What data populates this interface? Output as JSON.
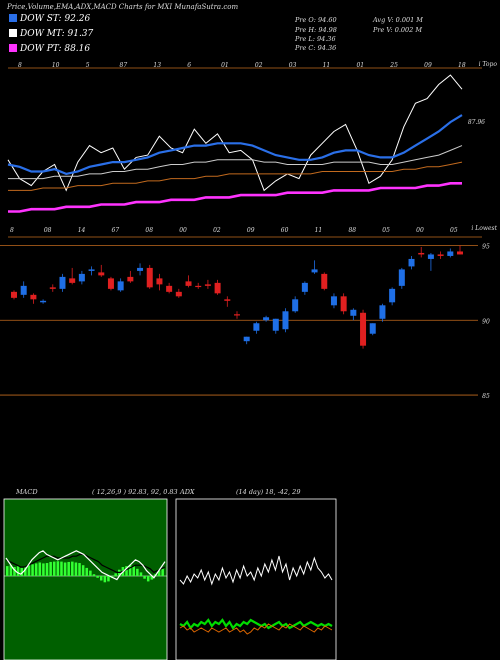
{
  "header": {
    "title": "Price,Volume,EMA,ADX,MACD Charts for MXI MunafaSutra.com",
    "legend": [
      {
        "label": "DOW ST: 92.26",
        "color": "#2a6fe8"
      },
      {
        "label": "DOW MT: 91.37",
        "color": "#ffffff"
      },
      {
        "label": "DOW PT: 88.16",
        "color": "#ff33ff"
      }
    ],
    "ohlc_left": [
      "Pre O: 94.60",
      "Pre H: 94.98",
      "Pre L: 94.36",
      "Pre C: 94.36"
    ],
    "ohlc_right": [
      "Avg V: 0.001 M",
      "Pre V: 0.002 M"
    ]
  },
  "chart_data": [
    {
      "type": "line",
      "panel": "ema",
      "corner_label": "i Topo",
      "last_value_label": "87.96",
      "top_axis_ticks": [
        "8",
        "10",
        "5",
        "87",
        "13",
        "6",
        "01",
        "02",
        "03",
        "11",
        "01",
        "25",
        "09",
        "18"
      ],
      "bottom_axis_ticks": [
        "8",
        "08",
        "14",
        "67",
        "08",
        "00",
        "02",
        "09",
        "60",
        "11",
        "88",
        "05",
        "00",
        "05"
      ],
      "series": [
        {
          "name": "price",
          "color": "#ffffff",
          "values": [
            91.4,
            90.6,
            90.3,
            90.9,
            91.2,
            90.1,
            91.3,
            92.0,
            91.7,
            91.9,
            91.0,
            91.5,
            91.6,
            92.4,
            91.9,
            91.7,
            92.7,
            92.1,
            92.5,
            91.7,
            91.8,
            91.4,
            90.1,
            90.5,
            90.8,
            90.6,
            91.6,
            92.1,
            92.6,
            92.9,
            91.8,
            90.4,
            90.7,
            91.4,
            92.8,
            93.8,
            94.0,
            94.6,
            95.0,
            94.4
          ]
        },
        {
          "name": "ema_short",
          "color": "#2a6fe8",
          "values": [
            91.2,
            91.1,
            90.9,
            90.9,
            91.0,
            90.8,
            90.9,
            91.1,
            91.2,
            91.3,
            91.3,
            91.4,
            91.5,
            91.7,
            91.8,
            91.9,
            92.0,
            92.0,
            92.1,
            92.1,
            92.1,
            92.0,
            91.8,
            91.6,
            91.5,
            91.4,
            91.4,
            91.5,
            91.7,
            91.8,
            91.8,
            91.6,
            91.5,
            91.5,
            91.7,
            92.0,
            92.3,
            92.6,
            93.0,
            93.3
          ]
        },
        {
          "name": "ema_mid",
          "color": "#cccccc",
          "values": [
            90.6,
            90.6,
            90.6,
            90.6,
            90.7,
            90.7,
            90.7,
            90.8,
            90.8,
            90.9,
            90.9,
            91.0,
            91.0,
            91.1,
            91.2,
            91.2,
            91.3,
            91.3,
            91.4,
            91.4,
            91.4,
            91.4,
            91.3,
            91.3,
            91.2,
            91.2,
            91.2,
            91.2,
            91.3,
            91.3,
            91.3,
            91.3,
            91.2,
            91.2,
            91.3,
            91.4,
            91.5,
            91.6,
            91.8,
            92.0
          ]
        },
        {
          "name": "ema_long",
          "color": "#c26a1e",
          "values": [
            90.1,
            90.1,
            90.1,
            90.2,
            90.2,
            90.2,
            90.3,
            90.3,
            90.3,
            90.4,
            90.4,
            90.4,
            90.5,
            90.5,
            90.6,
            90.6,
            90.6,
            90.7,
            90.7,
            90.8,
            90.8,
            90.8,
            90.8,
            90.8,
            90.8,
            90.8,
            90.8,
            90.9,
            90.9,
            90.9,
            90.9,
            90.9,
            90.9,
            90.9,
            91.0,
            91.0,
            91.1,
            91.1,
            91.2,
            91.3
          ]
        },
        {
          "name": "ema_pt",
          "color": "#ff33ff",
          "values": [
            89.2,
            89.2,
            89.3,
            89.3,
            89.3,
            89.4,
            89.4,
            89.4,
            89.5,
            89.5,
            89.5,
            89.6,
            89.6,
            89.6,
            89.7,
            89.7,
            89.7,
            89.8,
            89.8,
            89.8,
            89.9,
            89.9,
            89.9,
            89.9,
            90.0,
            90.0,
            90.0,
            90.0,
            90.1,
            90.1,
            90.1,
            90.1,
            90.2,
            90.2,
            90.2,
            90.2,
            90.3,
            90.3,
            90.4,
            90.4
          ]
        }
      ]
    },
    {
      "type": "candlestick",
      "panel": "price",
      "corner_label": "i Lowest",
      "y_ticks": [
        95,
        90,
        85
      ],
      "ylim": [
        84,
        95.5
      ],
      "candles": [
        {
          "o": 91.9,
          "h": 92.0,
          "l": 91.4,
          "c": 91.5,
          "up": false
        },
        {
          "o": 91.7,
          "h": 92.6,
          "l": 91.5,
          "c": 92.3,
          "up": true
        },
        {
          "o": 91.7,
          "h": 91.8,
          "l": 91.1,
          "c": 91.4,
          "up": false
        },
        {
          "o": 91.3,
          "h": 91.4,
          "l": 91.1,
          "c": 91.2,
          "up": true
        },
        {
          "o": 92.2,
          "h": 92.4,
          "l": 91.9,
          "c": 92.1,
          "up": false
        },
        {
          "o": 92.1,
          "h": 93.1,
          "l": 91.9,
          "c": 92.9,
          "up": true
        },
        {
          "o": 92.8,
          "h": 93.5,
          "l": 92.4,
          "c": 92.5,
          "up": false
        },
        {
          "o": 92.6,
          "h": 93.3,
          "l": 92.4,
          "c": 93.1,
          "up": true
        },
        {
          "o": 93.3,
          "h": 93.6,
          "l": 93.0,
          "c": 93.4,
          "up": true
        },
        {
          "o": 93.2,
          "h": 93.7,
          "l": 92.9,
          "c": 93.0,
          "up": false
        },
        {
          "o": 92.8,
          "h": 92.9,
          "l": 92.0,
          "c": 92.1,
          "up": false
        },
        {
          "o": 92.0,
          "h": 92.8,
          "l": 91.9,
          "c": 92.6,
          "up": true
        },
        {
          "o": 92.9,
          "h": 93.3,
          "l": 92.5,
          "c": 92.6,
          "up": false
        },
        {
          "o": 93.3,
          "h": 93.8,
          "l": 93.0,
          "c": 93.5,
          "up": true
        },
        {
          "o": 93.5,
          "h": 93.7,
          "l": 92.1,
          "c": 92.2,
          "up": false
        },
        {
          "o": 92.4,
          "h": 93.1,
          "l": 92.0,
          "c": 92.8,
          "up": false
        },
        {
          "o": 92.3,
          "h": 92.5,
          "l": 91.8,
          "c": 91.9,
          "up": false
        },
        {
          "o": 91.9,
          "h": 92.1,
          "l": 91.5,
          "c": 91.6,
          "up": false
        },
        {
          "o": 92.6,
          "h": 93.0,
          "l": 92.2,
          "c": 92.3,
          "up": false
        },
        {
          "o": 92.3,
          "h": 92.5,
          "l": 92.1,
          "c": 92.3,
          "up": false
        },
        {
          "o": 92.4,
          "h": 92.7,
          "l": 92.1,
          "c": 92.3,
          "up": false
        },
        {
          "o": 92.5,
          "h": 92.7,
          "l": 91.7,
          "c": 91.8,
          "up": false
        },
        {
          "o": 91.4,
          "h": 91.6,
          "l": 90.9,
          "c": 91.3,
          "up": false
        },
        {
          "o": 90.4,
          "h": 90.6,
          "l": 90.1,
          "c": 90.4,
          "up": false
        },
        {
          "o": 88.6,
          "h": 88.9,
          "l": 88.4,
          "c": 88.9,
          "up": true
        },
        {
          "o": 89.3,
          "h": 89.9,
          "l": 89.1,
          "c": 89.8,
          "up": true
        },
        {
          "o": 90.0,
          "h": 90.3,
          "l": 89.9,
          "c": 90.2,
          "up": true
        },
        {
          "o": 89.3,
          "h": 90.1,
          "l": 89.1,
          "c": 90.1,
          "up": true
        },
        {
          "o": 89.4,
          "h": 90.8,
          "l": 89.2,
          "c": 90.6,
          "up": true
        },
        {
          "o": 90.6,
          "h": 91.6,
          "l": 90.5,
          "c": 91.4,
          "up": true
        },
        {
          "o": 91.9,
          "h": 92.6,
          "l": 91.7,
          "c": 92.5,
          "up": true
        },
        {
          "o": 93.4,
          "h": 94.0,
          "l": 93.1,
          "c": 93.2,
          "up": true
        },
        {
          "o": 93.1,
          "h": 93.2,
          "l": 92.0,
          "c": 92.1,
          "up": false
        },
        {
          "o": 91.6,
          "h": 91.8,
          "l": 90.8,
          "c": 91.0,
          "up": true
        },
        {
          "o": 91.6,
          "h": 91.8,
          "l": 90.4,
          "c": 90.6,
          "up": false
        },
        {
          "o": 90.3,
          "h": 90.8,
          "l": 90.0,
          "c": 90.7,
          "up": true
        },
        {
          "o": 90.5,
          "h": 90.7,
          "l": 88.1,
          "c": 88.3,
          "up": false
        },
        {
          "o": 89.1,
          "h": 89.8,
          "l": 89.0,
          "c": 89.8,
          "up": true
        },
        {
          "o": 90.1,
          "h": 91.1,
          "l": 89.9,
          "c": 91.0,
          "up": true
        },
        {
          "o": 91.2,
          "h": 92.2,
          "l": 91.0,
          "c": 92.1,
          "up": true
        },
        {
          "o": 92.3,
          "h": 93.5,
          "l": 92.1,
          "c": 93.4,
          "up": true
        },
        {
          "o": 93.6,
          "h": 94.3,
          "l": 93.4,
          "c": 94.1,
          "up": true
        },
        {
          "o": 94.5,
          "h": 94.9,
          "l": 94.2,
          "c": 94.4,
          "up": false
        },
        {
          "o": 94.1,
          "h": 94.5,
          "l": 93.3,
          "c": 94.4,
          "up": true
        },
        {
          "o": 94.4,
          "h": 94.6,
          "l": 94.1,
          "c": 94.3,
          "up": false
        },
        {
          "o": 94.3,
          "h": 94.8,
          "l": 94.2,
          "c": 94.6,
          "up": true
        },
        {
          "o": 94.6,
          "h": 95.0,
          "l": 94.4,
          "c": 94.4,
          "up": false
        }
      ]
    },
    {
      "type": "bar",
      "panel": "macd",
      "title": "MACD",
      "params": "( 12,26,9 ) 92.83,  92,  0.83",
      "histogram": [
        0.55,
        0.6,
        0.5,
        0.55,
        0.45,
        0.5,
        0.6,
        0.65,
        0.7,
        0.75,
        0.7,
        0.72,
        0.78,
        0.8,
        0.82,
        0.8,
        0.75,
        0.78,
        0.8,
        0.75,
        0.72,
        0.6,
        0.45,
        0.3,
        0.1,
        -0.1,
        -0.25,
        -0.35,
        -0.3,
        -0.1,
        0.15,
        0.35,
        0.5,
        0.55,
        0.6,
        0.55,
        0.4,
        0.2,
        -0.15,
        -0.3,
        -0.2,
        0.1,
        0.3,
        0.4
      ],
      "macd_line": [
        1.0,
        0.7,
        0.4,
        0.2,
        0.1,
        0.3,
        0.6,
        0.9,
        1.1,
        1.3,
        1.4,
        1.2,
        1.1,
        1.0,
        0.9,
        1.0,
        1.1,
        1.2,
        1.3,
        1.4,
        1.3,
        1.2,
        1.0,
        0.8,
        0.6,
        0.4,
        0.2,
        0.1,
        0.0,
        -0.1,
        -0.2,
        0.1,
        0.3,
        0.5,
        0.7,
        0.9,
        0.8,
        0.6,
        0.3,
        0.1,
        -0.1,
        0.2,
        0.5,
        0.8
      ],
      "signal_line": [
        0.9,
        0.8,
        0.7,
        0.6,
        0.5,
        0.5,
        0.6,
        0.7,
        0.8,
        0.9,
        1.0,
        1.1,
        1.1,
        1.1,
        1.0,
        1.0,
        1.0,
        1.0,
        1.1,
        1.1,
        1.2,
        1.2,
        1.1,
        1.0,
        0.9,
        0.8,
        0.6,
        0.5,
        0.4,
        0.3,
        0.2,
        0.2,
        0.3,
        0.4,
        0.5,
        0.6,
        0.6,
        0.6,
        0.5,
        0.4,
        0.2,
        0.3,
        0.4,
        0.5
      ]
    },
    {
      "type": "line",
      "panel": "adx",
      "title": "ADX",
      "params": "(14 day) 18,  -42,  29",
      "series": [
        {
          "name": "adx",
          "color": "#ffffff",
          "values": [
            40,
            38,
            42,
            39,
            43,
            41,
            45,
            40,
            44,
            38,
            43,
            40,
            46,
            41,
            44,
            39,
            45,
            41,
            47,
            42,
            44,
            40,
            46,
            42,
            48,
            44,
            50,
            45,
            52,
            44,
            48,
            40,
            46,
            42,
            47,
            43,
            49,
            45,
            51,
            46,
            44,
            41,
            43,
            40
          ]
        },
        {
          "name": "di_plus",
          "color": "#00dd00",
          "values": [
            18,
            17,
            19,
            16,
            18,
            17,
            19,
            18,
            20,
            17,
            19,
            18,
            20,
            17,
            19,
            16,
            18,
            17,
            19,
            18,
            20,
            19,
            18,
            17,
            18,
            16,
            17,
            18,
            19,
            17,
            18,
            16,
            17,
            18,
            19,
            17,
            18,
            19,
            18,
            17,
            18,
            17,
            18,
            17
          ]
        },
        {
          "name": "di_minus",
          "color": "#dd6600",
          "values": [
            16,
            17,
            15,
            16,
            14,
            15,
            16,
            15,
            14,
            16,
            15,
            14,
            15,
            16,
            14,
            15,
            16,
            14,
            15,
            13,
            14,
            16,
            15,
            17,
            16,
            18,
            17,
            16,
            15,
            17,
            16,
            18,
            17,
            16,
            15,
            17,
            16,
            15,
            14,
            16,
            15,
            17,
            16,
            15
          ]
        }
      ]
    }
  ]
}
